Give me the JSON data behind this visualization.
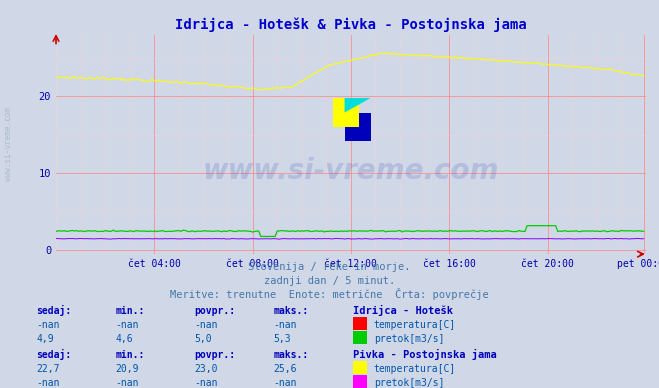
{
  "title": "Idrijca - Hotešk & Pivka - Postojnska jama",
  "title_color": "#0000cc",
  "bg_color": "#d0d8e8",
  "plot_bg_color": "#d0d8e8",
  "grid_color_major": "#ff8888",
  "grid_color_minor": "#ffcccc",
  "tick_color": "#0000aa",
  "x_tick_labels": [
    "čet 04:00",
    "čet 08:00",
    "čet 12:00",
    "čet 16:00",
    "čet 20:00",
    "pet 00:00"
  ],
  "y_ticks": [
    0,
    10,
    20
  ],
  "ylim": [
    -0.5,
    28
  ],
  "xlim": [
    0,
    288
  ],
  "watermark_text": "www.si-vreme.com",
  "watermark_color": "#3344aa",
  "watermark_alpha": 0.18,
  "subtitle1": "Slovenija / reke in morje.",
  "subtitle2": "zadnji dan / 5 minut.",
  "subtitle3": "Meritve: trenutne  Enote: metrične  Črta: povprečje",
  "subtitle_color": "#4477aa",
  "table_header_color": "#0000bb",
  "table_value_color": "#0055aa",
  "station1_name": "Idrijca - Hotešk",
  "station1_temp_color": "#ff0000",
  "station1_flow_color": "#00cc00",
  "station1_sedaj_temp": "-nan",
  "station1_min_temp": "-nan",
  "station1_povpr_temp": "-nan",
  "station1_maks_temp": "-nan",
  "station1_sedaj_flow": "4,9",
  "station1_min_flow": "4,6",
  "station1_povpr_flow": "5,0",
  "station1_maks_flow": "5,3",
  "station2_name": "Pivka - Postojnska jama",
  "station2_temp_color": "#ffff00",
  "station2_flow_color": "#ff00ff",
  "station2_sedaj_temp": "22,7",
  "station2_min_temp": "20,9",
  "station2_povpr_temp": "23,0",
  "station2_maks_temp": "25,6",
  "station2_sedaj_flow": "-nan",
  "station2_min_flow": "-nan",
  "station2_povpr_flow": "-nan",
  "station2_maks_flow": "-nan",
  "n_points": 288,
  "left_label": "www.si-vreme.com",
  "left_label_color": "#aabbcc"
}
